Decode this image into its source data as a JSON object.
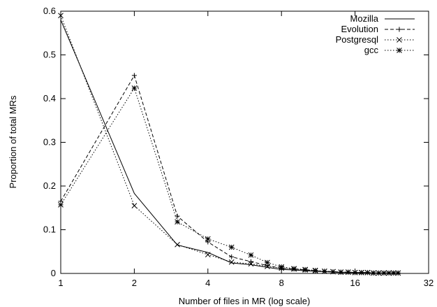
{
  "chart_data": {
    "type": "line",
    "title": "",
    "xlabel": "Number of files in MR (log scale)",
    "ylabel": "Proportion of total MRs",
    "x_scale": "log2",
    "xlim": [
      1,
      32
    ],
    "ylim": [
      0,
      0.6
    ],
    "x_ticks": [
      1,
      2,
      4,
      8,
      16,
      32
    ],
    "y_ticks": [
      0,
      0.1,
      0.2,
      0.3,
      0.4,
      0.5,
      0.6
    ],
    "grid": false,
    "legend_position": "top-right",
    "series": [
      {
        "name": "Mozilla",
        "style": "solid",
        "marker": "none",
        "x": [
          1,
          2,
          3,
          4,
          5,
          6,
          7,
          8,
          9,
          10,
          11,
          12,
          13,
          14,
          15,
          16,
          17,
          18,
          19,
          20,
          21,
          22,
          23,
          24
        ],
        "y": [
          0.58,
          0.183,
          0.065,
          0.048,
          0.024,
          0.02,
          0.014,
          0.009,
          0.008,
          0.006,
          0.005,
          0.004,
          0.003,
          0.002,
          0.002,
          0.002,
          0.001,
          0.001,
          0.001,
          0.001,
          0.001,
          0.001,
          0.001,
          0.001
        ]
      },
      {
        "name": "Evolution",
        "style": "dashed",
        "marker": "plus",
        "x": [
          1,
          2,
          3,
          4,
          5,
          6,
          7,
          8,
          9,
          10,
          11,
          12,
          13,
          14,
          15,
          16,
          17,
          18,
          19,
          20,
          21,
          22,
          23,
          24
        ],
        "y": [
          0.165,
          0.453,
          0.131,
          0.072,
          0.038,
          0.027,
          0.018,
          0.012,
          0.01,
          0.008,
          0.006,
          0.005,
          0.004,
          0.003,
          0.003,
          0.002,
          0.002,
          0.002,
          0.001,
          0.001,
          0.001,
          0.001,
          0.001,
          0.001
        ]
      },
      {
        "name": "Postgresql",
        "style": "dotted",
        "marker": "x",
        "x": [
          1,
          2,
          3,
          4,
          5,
          6,
          7,
          8,
          9,
          10,
          11,
          12,
          13,
          14,
          15,
          16,
          17,
          18,
          19,
          20,
          21,
          22,
          23,
          24
        ],
        "y": [
          0.59,
          0.155,
          0.066,
          0.043,
          0.026,
          0.022,
          0.016,
          0.012,
          0.01,
          0.008,
          0.006,
          0.005,
          0.004,
          0.003,
          0.003,
          0.002,
          0.002,
          0.002,
          0.001,
          0.001,
          0.001,
          0.001,
          0.001,
          0.001
        ]
      },
      {
        "name": "gcc",
        "style": "dotted",
        "marker": "star",
        "x": [
          1,
          2,
          3,
          4,
          5,
          6,
          7,
          8,
          9,
          10,
          11,
          12,
          13,
          14,
          15,
          16,
          17,
          18,
          19,
          20,
          21,
          22,
          23,
          24
        ],
        "y": [
          0.157,
          0.424,
          0.118,
          0.079,
          0.06,
          0.042,
          0.025,
          0.015,
          0.011,
          0.009,
          0.007,
          0.005,
          0.004,
          0.003,
          0.003,
          0.002,
          0.002,
          0.002,
          0.001,
          0.001,
          0.001,
          0.001,
          0.001,
          0.001
        ]
      }
    ]
  }
}
